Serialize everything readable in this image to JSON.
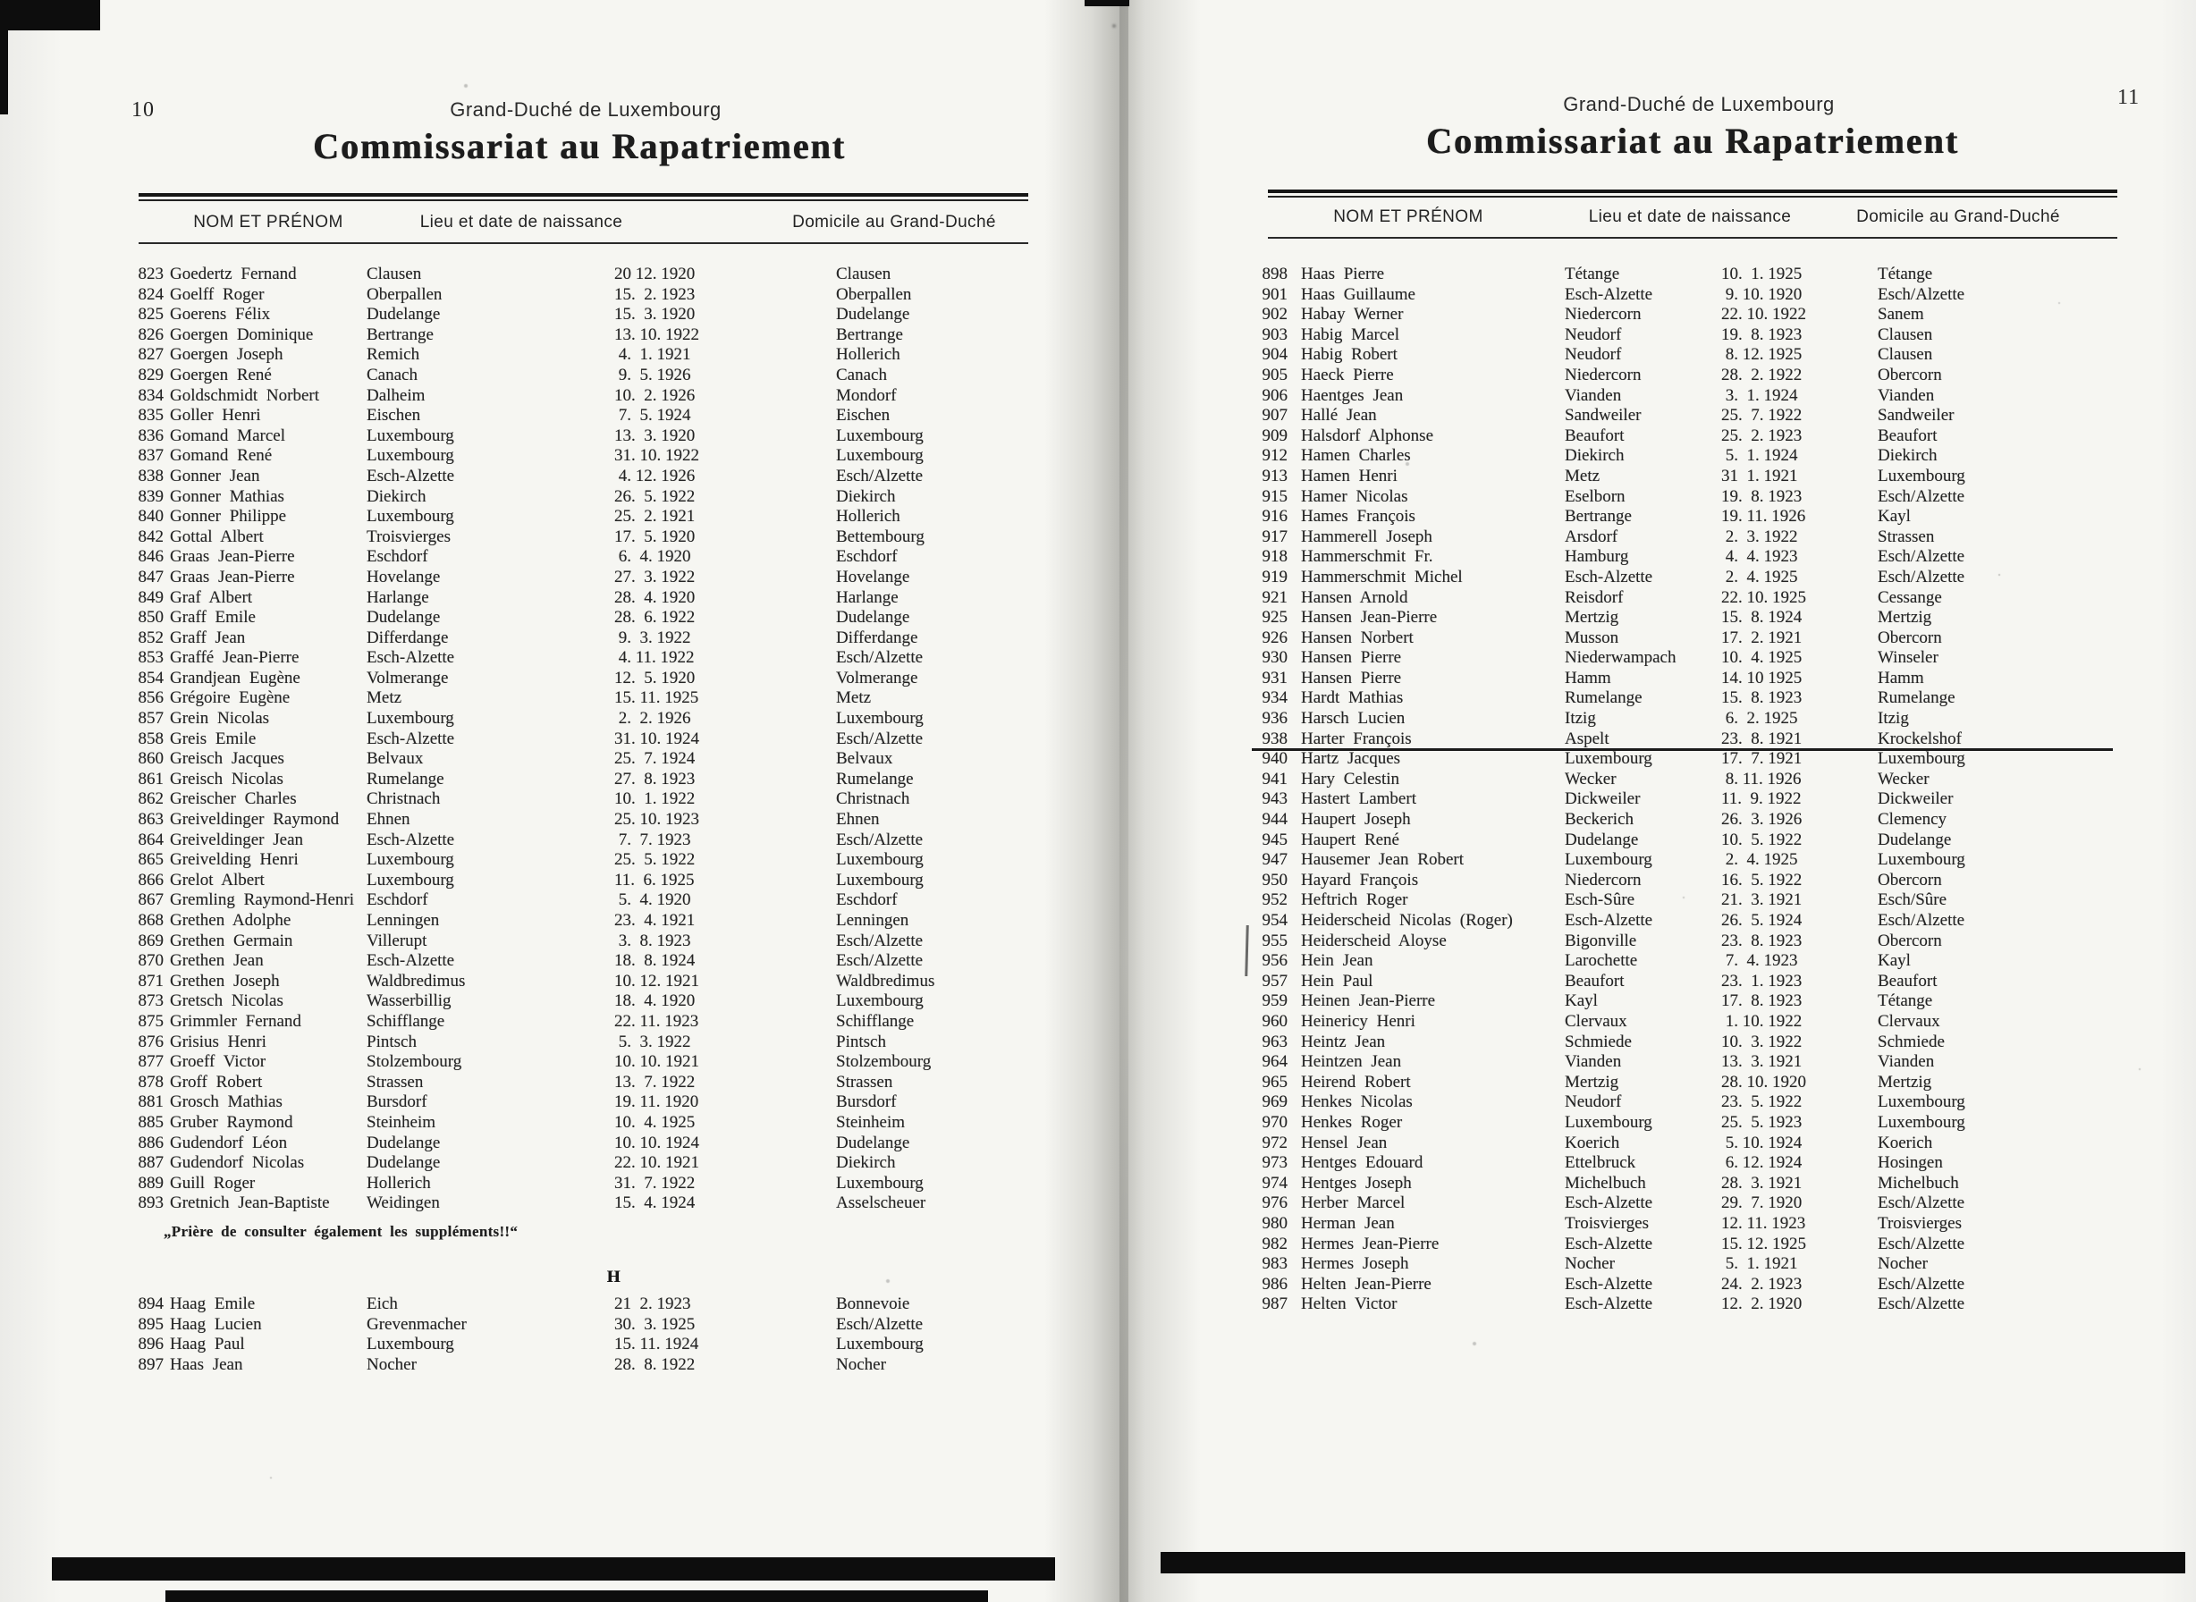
{
  "pages": [
    {
      "page_number": "10",
      "kicker": "Grand-Duché de Luxembourg",
      "title": "Commissariat au Rapatriement",
      "columns": {
        "name": "NOM ET PRÉNOM",
        "birth": "Lieu et date de naissance",
        "domicile": "Domicile au Grand-Duché"
      },
      "rows": [
        [
          "823",
          "Goedertz Fernand",
          "Clausen",
          "20 12. 1920",
          "Clausen"
        ],
        [
          "824",
          "Goelff Roger",
          "Oberpallen",
          "15.  2. 1923",
          "Oberpallen"
        ],
        [
          "825",
          "Goerens Félix",
          "Dudelange",
          "15.  3. 1920",
          "Dudelange"
        ],
        [
          "826",
          "Goergen Dominique",
          "Bertrange",
          "13. 10. 1922",
          "Bertrange"
        ],
        [
          "827",
          "Goergen Joseph",
          "Remich",
          " 4.  1. 1921",
          "Hollerich"
        ],
        [
          "829",
          "Goergen René",
          "Canach",
          " 9.  5. 1926",
          "Canach"
        ],
        [
          "834",
          "Goldschmidt Norbert",
          "Dalheim",
          "10.  2. 1926",
          "Mondorf"
        ],
        [
          "835",
          "Goller Henri",
          "Eischen",
          " 7.  5. 1924",
          "Eischen"
        ],
        [
          "836",
          "Gomand Marcel",
          "Luxembourg",
          "13.  3. 1920",
          "Luxembourg"
        ],
        [
          "837",
          "Gomand René",
          "Luxembourg",
          "31. 10. 1922",
          "Luxembourg"
        ],
        [
          "838",
          "Gonner Jean",
          "Esch-Alzette",
          " 4. 12. 1926",
          "Esch/Alzette"
        ],
        [
          "839",
          "Gonner Mathias",
          "Diekirch",
          "26.  5. 1922",
          "Diekirch"
        ],
        [
          "840",
          "Gonner Philippe",
          "Luxembourg",
          "25.  2. 1921",
          "Hollerich"
        ],
        [
          "842",
          "Gottal Albert",
          "Troisvierges",
          "17.  5. 1920",
          "Bettembourg"
        ],
        [
          "846",
          "Graas Jean-Pierre",
          "Eschdorf",
          " 6.  4. 1920",
          "Eschdorf"
        ],
        [
          "847",
          "Graas Jean-Pierre",
          "Hovelange",
          "27.  3. 1922",
          "Hovelange"
        ],
        [
          "849",
          "Graf Albert",
          "Harlange",
          "28.  4. 1920",
          "Harlange"
        ],
        [
          "850",
          "Graff Emile",
          "Dudelange",
          "28.  6. 1922",
          "Dudelange"
        ],
        [
          "852",
          "Graff Jean",
          "Differdange",
          " 9.  3. 1922",
          "Differdange"
        ],
        [
          "853",
          "Graffé Jean-Pierre",
          "Esch-Alzette",
          " 4. 11. 1922",
          "Esch/Alzette"
        ],
        [
          "854",
          "Grandjean Eugène",
          "Volmerange",
          "12.  5. 1920",
          "Volmerange"
        ],
        [
          "856",
          "Grégoire Eugène",
          "Metz",
          "15. 11. 1925",
          "Metz"
        ],
        [
          "857",
          "Grein Nicolas",
          "Luxembourg",
          " 2.  2. 1926",
          "Luxembourg"
        ],
        [
          "858",
          "Greis Emile",
          "Esch-Alzette",
          "31. 10. 1924",
          "Esch/Alzette"
        ],
        [
          "860",
          "Greisch Jacques",
          "Belvaux",
          "25.  7. 1924",
          "Belvaux"
        ],
        [
          "861",
          "Greisch Nicolas",
          "Rumelange",
          "27.  8. 1923",
          "Rumelange"
        ],
        [
          "862",
          "Greischer Charles",
          "Christnach",
          "10.  1. 1922",
          "Christnach"
        ],
        [
          "863",
          "Greiveldinger Raymond",
          "Ehnen",
          "25. 10. 1923",
          "Ehnen"
        ],
        [
          "864",
          "Greiveldinger Jean",
          "Esch-Alzette",
          " 7.  7. 1923",
          "Esch/Alzette"
        ],
        [
          "865",
          "Greivelding Henri",
          "Luxembourg",
          "25.  5. 1922",
          "Luxembourg"
        ],
        [
          "866",
          "Grelot Albert",
          "Luxembourg",
          "11.  6. 1925",
          "Luxembourg"
        ],
        [
          "867",
          "Gremling Raymond-Henri",
          "Eschdorf",
          " 5.  4. 1920",
          "Eschdorf"
        ],
        [
          "868",
          "Grethen Adolphe",
          "Lenningen",
          "23.  4. 1921",
          "Lenningen"
        ],
        [
          "869",
          "Grethen Germain",
          "Villerupt",
          " 3.  8. 1923",
          "Esch/Alzette"
        ],
        [
          "870",
          "Grethen Jean",
          "Esch-Alzette",
          "18.  8. 1924",
          "Esch/Alzette"
        ],
        [
          "871",
          "Grethen Joseph",
          "Waldbredimus",
          "10. 12. 1921",
          "Waldbredimus"
        ],
        [
          "873",
          "Gretsch Nicolas",
          "Wasserbillig",
          "18.  4. 1920",
          "Luxembourg"
        ],
        [
          "875",
          "Grimmler Fernand",
          "Schifflange",
          "22. 11. 1923",
          "Schifflange"
        ],
        [
          "876",
          "Grisius Henri",
          "Pintsch",
          " 5.  3. 1922",
          "Pintsch"
        ],
        [
          "877",
          "Groeff Victor",
          "Stolzembourg",
          "10. 10. 1921",
          "Stolzembourg"
        ],
        [
          "878",
          "Groff Robert",
          "Strassen",
          "13.  7. 1922",
          "Strassen"
        ],
        [
          "881",
          "Grosch Mathias",
          "Bursdorf",
          "19. 11. 1920",
          "Bursdorf"
        ],
        [
          "885",
          "Gruber Raymond",
          "Steinheim",
          "10.  4. 1925",
          "Steinheim"
        ],
        [
          "886",
          "Gudendorf Léon",
          "Dudelange",
          "10. 10. 1924",
          "Dudelange"
        ],
        [
          "887",
          "Gudendorf Nicolas",
          "Dudelange",
          "22. 10. 1921",
          "Diekirch"
        ],
        [
          "889",
          "Guill Roger",
          "Hollerich",
          "31.  7. 1922",
          "Luxembourg"
        ],
        [
          "893",
          "Gretnich Jean-Baptiste",
          "Weidingen",
          "15.  4. 1924",
          "Asselscheuer"
        ]
      ],
      "note": "„Prière de consulter également les suppléments!!“",
      "section_letter": "H",
      "rows_h": [
        [
          "894",
          "Haag Emile",
          "Eich",
          "21  2. 1923",
          "Bonnevoie"
        ],
        [
          "895",
          "Haag Lucien",
          "Grevenmacher",
          "30.  3. 1925",
          "Esch/Alzette"
        ],
        [
          "896",
          "Haag Paul",
          "Luxembourg",
          "15. 11. 1924",
          "Luxembourg"
        ],
        [
          "897",
          "Haas Jean",
          "Nocher",
          "28.  8. 1922",
          "Nocher"
        ]
      ]
    },
    {
      "page_number": "11",
      "kicker": "Grand-Duché de Luxembourg",
      "title": "Commissariat au Rapatriement",
      "columns": {
        "name": "NOM ET PRÉNOM",
        "birth": "Lieu et date de naissance",
        "domicile": "Domicile au Grand-Duché"
      },
      "rule_after_row": "938",
      "rows": [
        [
          "898",
          "Haas Pierre",
          "Tétange",
          "10.  1. 1925",
          "Tétange"
        ],
        [
          "901",
          "Haas Guillaume",
          "Esch-Alzette",
          " 9. 10. 1920",
          "Esch/Alzette"
        ],
        [
          "902",
          "Habay Werner",
          "Niedercorn",
          "22. 10. 1922",
          "Sanem"
        ],
        [
          "903",
          "Habig Marcel",
          "Neudorf",
          "19.  8. 1923",
          "Clausen"
        ],
        [
          "904",
          "Habig Robert",
          "Neudorf",
          " 8. 12. 1925",
          "Clausen"
        ],
        [
          "905",
          "Haeck Pierre",
          "Niedercorn",
          "28.  2. 1922",
          "Obercorn"
        ],
        [
          "906",
          "Haentges Jean",
          "Vianden",
          " 3.  1. 1924",
          "Vianden"
        ],
        [
          "907",
          "Hallé Jean",
          "Sandweiler",
          "25.  7. 1922",
          "Sandweiler"
        ],
        [
          "909",
          "Halsdorf Alphonse",
          "Beaufort",
          "25.  2. 1923",
          "Beaufort"
        ],
        [
          "912",
          "Hamen Charles",
          "Diekirch",
          " 5.  1. 1924",
          "Diekirch"
        ],
        [
          "913",
          "Hamen Henri",
          "Metz",
          "31  1. 1921",
          "Luxembourg"
        ],
        [
          "915",
          "Hamer Nicolas",
          "Eselborn",
          "19.  8. 1923",
          "Esch/Alzette"
        ],
        [
          "916",
          "Hames François",
          "Bertrange",
          "19. 11. 1926",
          "Kayl"
        ],
        [
          "917",
          "Hammerell Joseph",
          "Arsdorf",
          " 2.  3. 1922",
          "Strassen"
        ],
        [
          "918",
          "Hammerschmit Fr.",
          "Hamburg",
          " 4.  4. 1923",
          "Esch/Alzette"
        ],
        [
          "919",
          "Hammerschmit Michel",
          "Esch-Alzette",
          " 2.  4. 1925",
          "Esch/Alzette"
        ],
        [
          "921",
          "Hansen Arnold",
          "Reisdorf",
          "22. 10. 1925",
          "Cessange"
        ],
        [
          "925",
          "Hansen Jean-Pierre",
          "Mertzig",
          "15.  8. 1924",
          "Mertzig"
        ],
        [
          "926",
          "Hansen Norbert",
          "Musson",
          "17.  2. 1921",
          "Obercorn"
        ],
        [
          "930",
          "Hansen Pierre",
          "Niederwampach",
          "10.  4. 1925",
          "Winseler"
        ],
        [
          "931",
          "Hansen Pierre",
          "Hamm",
          "14. 10 1925",
          "Hamm"
        ],
        [
          "934",
          "Hardt Mathias",
          "Rumelange",
          "15.  8. 1923",
          "Rumelange"
        ],
        [
          "936",
          "Harsch Lucien",
          "Itzig",
          " 6.  2. 1925",
          "Itzig"
        ],
        [
          "938",
          "Harter François",
          "Aspelt",
          "23.  8. 1921",
          "Krockelshof"
        ],
        [
          "940",
          "Hartz Jacques",
          "Luxembourg",
          "17.  7. 1921",
          "Luxembourg"
        ],
        [
          "941",
          "Hary Celestin",
          "Wecker",
          " 8. 11. 1926",
          "Wecker"
        ],
        [
          "943",
          "Hastert Lambert",
          "Dickweiler",
          "11.  9. 1922",
          "Dickweiler"
        ],
        [
          "944",
          "Haupert Joseph",
          "Beckerich",
          "26.  3. 1926",
          "Clemency"
        ],
        [
          "945",
          "Haupert René",
          "Dudelange",
          "10.  5. 1922",
          "Dudelange"
        ],
        [
          "947",
          "Hausemer Jean Robert",
          "Luxembourg",
          " 2.  4. 1925",
          "Luxembourg"
        ],
        [
          "950",
          "Hayard François",
          "Niedercorn",
          "16.  5. 1922",
          "Obercorn"
        ],
        [
          "952",
          "Heftrich Roger",
          "Esch-Sûre",
          "21.  3. 1921",
          "Esch/Sûre"
        ],
        [
          "954",
          "Heiderscheid Nicolas (Roger)",
          "Esch-Alzette",
          "26.  5. 1924",
          "Esch/Alzette"
        ],
        [
          "955",
          "Heiderscheid Aloyse",
          "Bigonville",
          "23.  8. 1923",
          "Obercorn"
        ],
        [
          "956",
          "Hein Jean",
          "Larochette",
          " 7.  4. 1923",
          "Kayl"
        ],
        [
          "957",
          "Hein Paul",
          "Beaufort",
          "23.  1. 1923",
          "Beaufort"
        ],
        [
          "959",
          "Heinen Jean-Pierre",
          "Kayl",
          "17.  8. 1923",
          "Tétange"
        ],
        [
          "960",
          "Heinericy Henri",
          "Clervaux",
          " 1. 10. 1922",
          "Clervaux"
        ],
        [
          "963",
          "Heintz Jean",
          "Schmiede",
          "10.  3. 1922",
          "Schmiede"
        ],
        [
          "964",
          "Heintzen Jean",
          "Vianden",
          "13.  3. 1921",
          "Vianden"
        ],
        [
          "965",
          "Heirend Robert",
          "Mertzig",
          "28. 10. 1920",
          "Mertzig"
        ],
        [
          "969",
          "Henkes Nicolas",
          "Neudorf",
          "23.  5. 1922",
          "Luxembourg"
        ],
        [
          "970",
          "Henkes Roger",
          "Luxembourg",
          "25.  5. 1923",
          "Luxembourg"
        ],
        [
          "972",
          "Hensel Jean",
          "Koerich",
          " 5. 10. 1924",
          "Koerich"
        ],
        [
          "973",
          "Hentges Edouard",
          "Ettelbruck",
          " 6. 12. 1924",
          "Hosingen"
        ],
        [
          "974",
          "Hentges Joseph",
          "Michelbuch",
          "28.  3. 1921",
          "Michelbuch"
        ],
        [
          "976",
          "Herber Marcel",
          "Esch-Alzette",
          "29.  7. 1920",
          "Esch/Alzette"
        ],
        [
          "980",
          "Herman Jean",
          "Troisvierges",
          "12. 11. 1923",
          "Troisvierges"
        ],
        [
          "982",
          "Hermes Jean-Pierre",
          "Esch-Alzette",
          "15. 12. 1925",
          "Esch/Alzette"
        ],
        [
          "983",
          "Hermes Joseph",
          "Nocher",
          " 5.  1. 1921",
          "Nocher"
        ],
        [
          "986",
          "Helten Jean-Pierre",
          "Esch-Alzette",
          "24.  2. 1923",
          "Esch/Alzette"
        ],
        [
          "987",
          "Helten Victor",
          "Esch-Alzette",
          "12.  2. 1920",
          "Esch/Alzette"
        ]
      ]
    }
  ]
}
